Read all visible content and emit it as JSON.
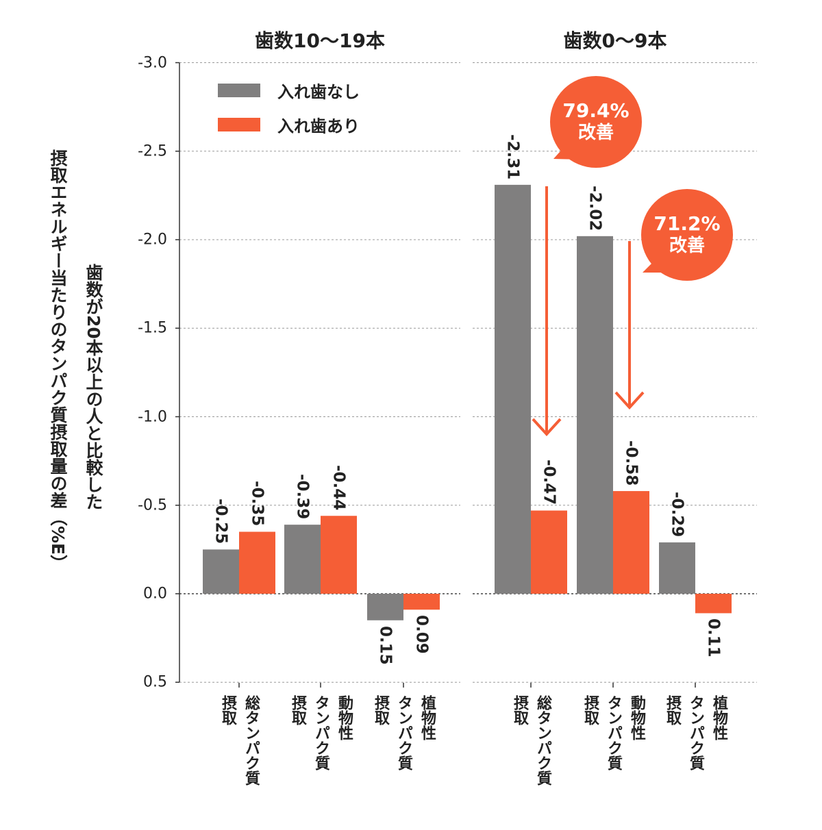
{
  "chart_data": [
    {
      "type": "bar",
      "title": "歯数10～19本",
      "categories": [
        "総タンパク質\n摂取",
        "動物性\nタンパク質\n摂取",
        "植物性\nタンパク質\n摂取"
      ],
      "series": [
        {
          "name": "入れ歯なし",
          "values": [
            -0.25,
            -0.39,
            0.15
          ],
          "labels": [
            "-0.25",
            "-0.39",
            "0.15"
          ]
        },
        {
          "name": "入れ歯あり",
          "values": [
            -0.35,
            -0.44,
            0.09
          ],
          "labels": [
            "-0.35",
            "-0.44",
            "0.09"
          ]
        }
      ]
    },
    {
      "type": "bar",
      "title": "歯数0～9本",
      "categories": [
        "総タンパク質\n摂取",
        "動物性\nタンパク質\n摂取",
        "植物性\nタンパク質\n摂取"
      ],
      "series": [
        {
          "name": "入れ歯なし",
          "values": [
            -2.31,
            -2.02,
            -0.29
          ],
          "labels": [
            "-2.31",
            "-2.02",
            "-0.29"
          ]
        },
        {
          "name": "入れ歯あり",
          "values": [
            -0.47,
            -0.58,
            0.11
          ],
          "labels": [
            "-0.47",
            "-0.58",
            "0.11"
          ]
        }
      ],
      "annotations": [
        {
          "pct": "79.4%",
          "text": "改善",
          "category": 0
        },
        {
          "pct": "71.2%",
          "text": "改善",
          "category": 1
        }
      ]
    }
  ],
  "axis": {
    "ylabel_line1": "歯数が20本以上の人と比較した",
    "ylabel_line2": "摂取エネルギー当たりのタンパク質摂取量の差（%E）",
    "ylim": [
      0.5,
      -3.0
    ],
    "inverted": true,
    "ticks": [
      "-3.0",
      "-2.5",
      "-2.0",
      "-1.5",
      "-1.0",
      "-0.5",
      "0.0",
      "0.5"
    ],
    "tick_values": [
      -3,
      -2.5,
      -2,
      -1.5,
      -1,
      -0.5,
      0,
      0.5
    ],
    "grid": true
  },
  "legend": {
    "placement": "top-left",
    "items": [
      "入れ歯なし",
      "入れ歯あり"
    ]
  },
  "colors": {
    "no_denture": "#807f7f",
    "denture": "#f55e36",
    "text": "#222222"
  }
}
